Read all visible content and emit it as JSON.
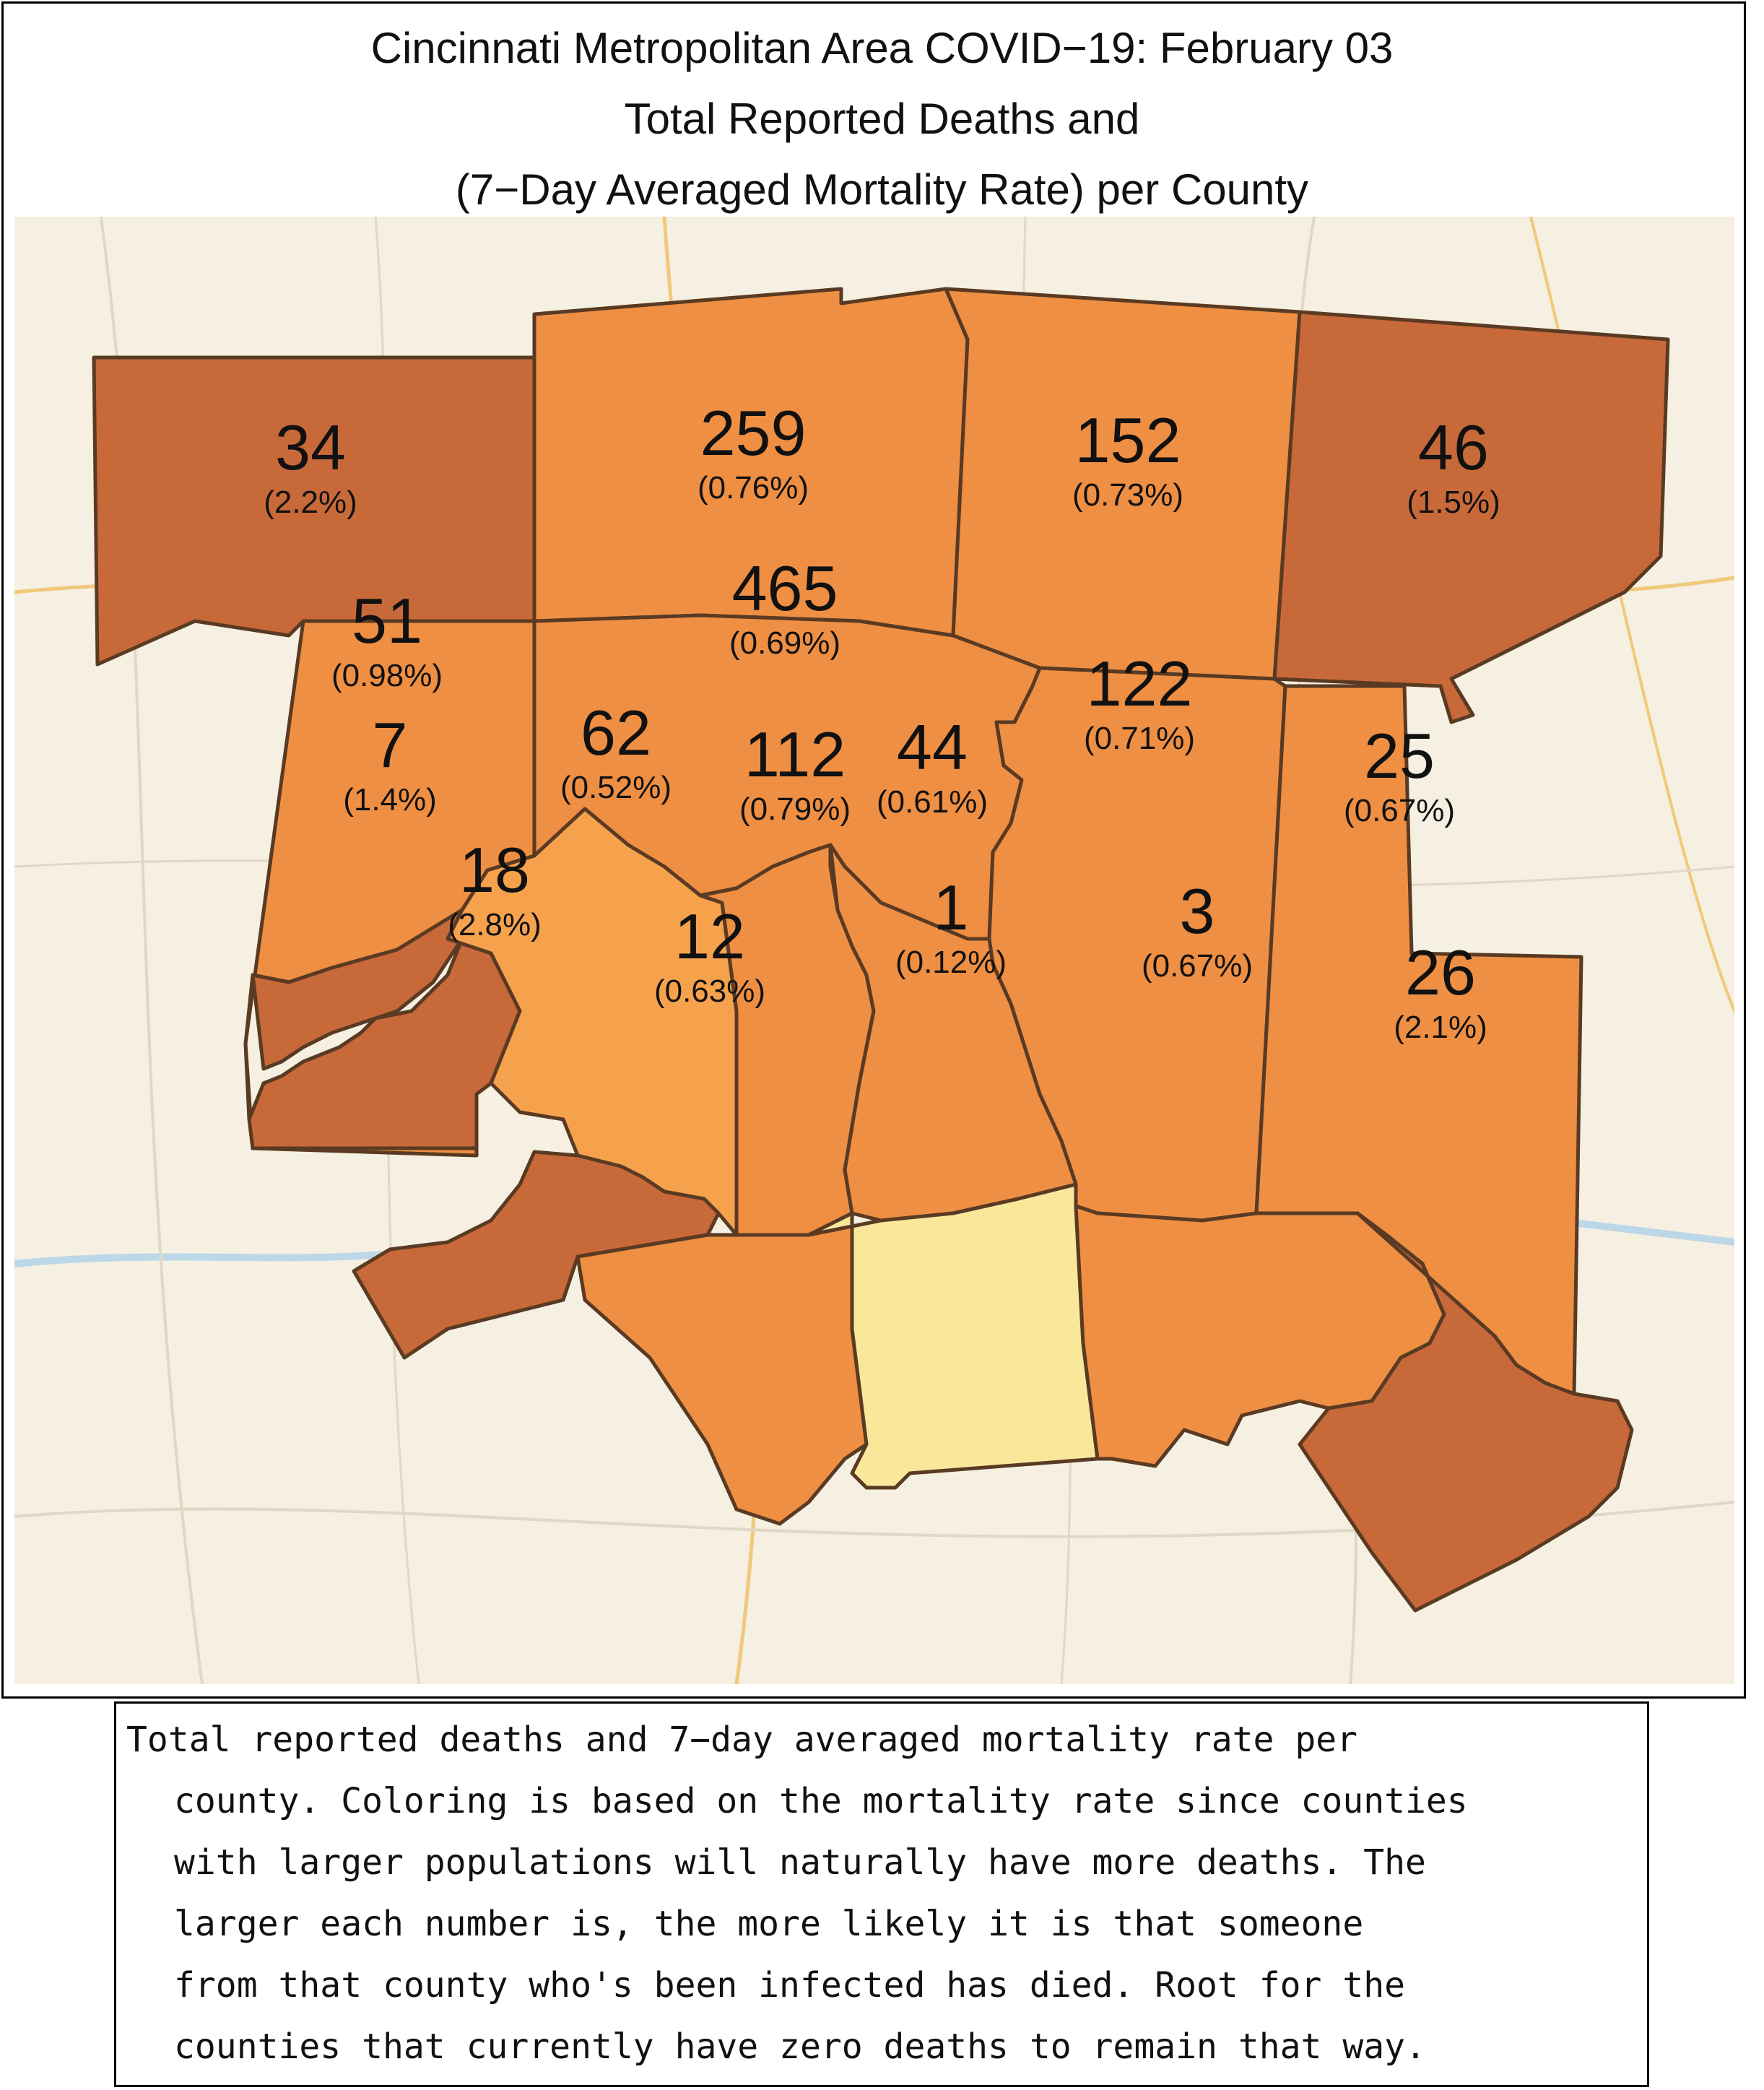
{
  "title": {
    "line1": "Cincinnati Metropolitan Area COVID−19: February 03",
    "line2": "Total Reported Deaths and",
    "line3": "(7−Day Averaged Mortality Rate) per County"
  },
  "colors": {
    "dark": "#c8693a",
    "mid": "#ef8f43",
    "light": "#f6a24d",
    "pale": "#f9e89a",
    "border": "#5a3a22",
    "basemap": "#f5f0e1"
  },
  "counties": [
    {
      "id": "nw",
      "deaths": "34",
      "rate": "(2.2%)",
      "shade": "dark"
    },
    {
      "id": "n1",
      "deaths": "259",
      "rate": "(0.76%)",
      "shade": "mid"
    },
    {
      "id": "n2",
      "deaths": "152",
      "rate": "(0.73%)",
      "shade": "mid"
    },
    {
      "id": "ne",
      "deaths": "46",
      "rate": "(1.5%)",
      "shade": "dark"
    },
    {
      "id": "w1",
      "deaths": "51",
      "rate": "(0.98%)",
      "shade": "mid"
    },
    {
      "id": "c1",
      "deaths": "465",
      "rate": "(0.69%)",
      "shade": "mid"
    },
    {
      "id": "e1",
      "deaths": "122",
      "rate": "(0.71%)",
      "shade": "mid"
    },
    {
      "id": "e2",
      "deaths": "25",
      "rate": "(0.67%)",
      "shade": "mid"
    },
    {
      "id": "w2",
      "deaths": "7",
      "rate": "(1.4%)",
      "shade": "dark"
    },
    {
      "id": "c2",
      "deaths": "62",
      "rate": "(0.52%)",
      "shade": "light"
    },
    {
      "id": "c3",
      "deaths": "112",
      "rate": "(0.79%)",
      "shade": "mid"
    },
    {
      "id": "c4",
      "deaths": "44",
      "rate": "(0.61%)",
      "shade": "mid"
    },
    {
      "id": "sw",
      "deaths": "18",
      "rate": "(2.8%)",
      "shade": "dark"
    },
    {
      "id": "s1",
      "deaths": "12",
      "rate": "(0.63%)",
      "shade": "mid"
    },
    {
      "id": "s2",
      "deaths": "1",
      "rate": "(0.12%)",
      "shade": "pale"
    },
    {
      "id": "s3",
      "deaths": "3",
      "rate": "(0.67%)",
      "shade": "mid"
    },
    {
      "id": "se",
      "deaths": "26",
      "rate": "(2.1%)",
      "shade": "dark"
    }
  ],
  "caption": {
    "lines": [
      "Total reported deaths and 7−day averaged mortality rate per",
      "county. Coloring is based on the mortality rate since counties",
      "with larger populations will naturally have more deaths. The",
      "larger each number is, the more likely it is that someone",
      "from that county who's been infected has died. Root for the",
      "counties that currently have zero deaths to remain that way."
    ]
  }
}
